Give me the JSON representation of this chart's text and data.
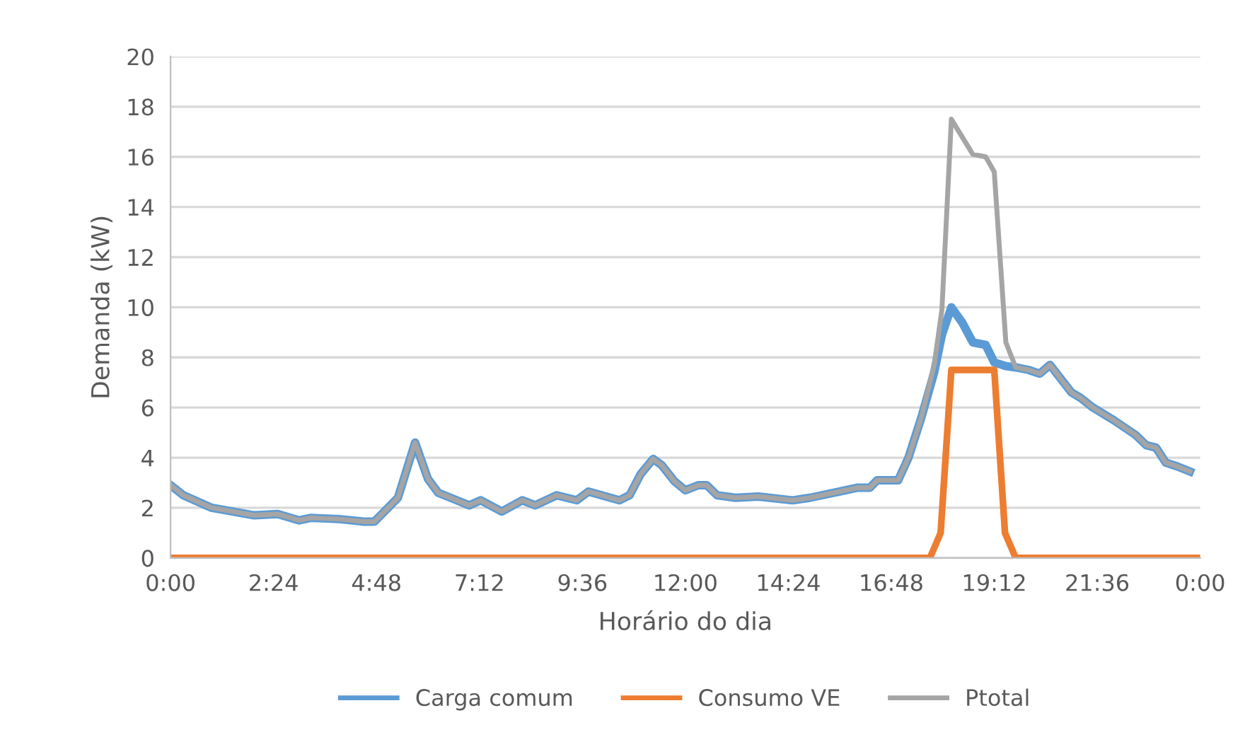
{
  "chart_data": {
    "type": "line",
    "xlabel": "Horário do dia",
    "ylabel": "Demanda (kW)",
    "xlim": [
      0,
      24
    ],
    "ylim": [
      0,
      20
    ],
    "xticks": [
      {
        "value": 0,
        "label": "0:00"
      },
      {
        "value": 2.4,
        "label": "2:24"
      },
      {
        "value": 4.8,
        "label": "4:48"
      },
      {
        "value": 7.2,
        "label": "7:12"
      },
      {
        "value": 9.6,
        "label": "9:36"
      },
      {
        "value": 12,
        "label": "12:00"
      },
      {
        "value": 14.4,
        "label": "14:24"
      },
      {
        "value": 16.8,
        "label": "16:48"
      },
      {
        "value": 19.2,
        "label": "19:12"
      },
      {
        "value": 21.6,
        "label": "21:36"
      },
      {
        "value": 24,
        "label": "0:00"
      }
    ],
    "yticks": [
      0,
      2,
      4,
      6,
      8,
      10,
      12,
      14,
      16,
      18,
      20
    ],
    "grid": "y",
    "legend": "bottom",
    "marker": "none",
    "line_style": "solid",
    "series": [
      {
        "name": "Carga comum",
        "color": "#5b9bd5",
        "x": [
          0,
          0.3,
          0.96,
          1.95,
          2.5,
          3.0,
          3.27,
          3.93,
          4.5,
          4.75,
          5.3,
          5.7,
          6.0,
          6.24,
          6.67,
          6.96,
          7.23,
          7.72,
          8.2,
          8.5,
          9.0,
          9.47,
          9.74,
          10.46,
          10.7,
          10.96,
          11.25,
          11.45,
          11.75,
          12.0,
          12.3,
          12.5,
          12.74,
          13.17,
          13.7,
          14.5,
          14.9,
          15.6,
          16.0,
          16.3,
          16.47,
          16.96,
          17.2,
          17.5,
          17.8,
          17.98,
          18.2,
          18.45,
          18.7,
          19.0,
          19.2,
          19.47,
          19.7,
          20.0,
          20.26,
          20.5,
          21.0,
          21.2,
          21.5,
          21.98,
          22.5,
          22.74,
          22.97,
          23.2,
          23.47,
          23.76
        ],
        "values": [
          2.9,
          2.5,
          2.0,
          1.7,
          1.75,
          1.5,
          1.6,
          1.55,
          1.45,
          1.45,
          2.4,
          4.6,
          3.15,
          2.6,
          2.3,
          2.1,
          2.3,
          1.85,
          2.3,
          2.1,
          2.5,
          2.3,
          2.65,
          2.3,
          2.5,
          3.35,
          3.95,
          3.7,
          3.05,
          2.7,
          2.9,
          2.9,
          2.5,
          2.4,
          2.45,
          2.3,
          2.4,
          2.65,
          2.8,
          2.8,
          3.1,
          3.1,
          4.0,
          5.6,
          7.4,
          8.9,
          10.0,
          9.4,
          8.6,
          8.5,
          7.8,
          7.65,
          7.6,
          7.5,
          7.35,
          7.7,
          6.6,
          6.4,
          6.0,
          5.5,
          4.9,
          4.5,
          4.4,
          3.8,
          3.65,
          3.45
        ]
      },
      {
        "name": "Consumo VE",
        "color": "#ed7d31",
        "x": [
          0,
          17.7,
          17.95,
          18.2,
          19.2,
          19.45,
          19.7,
          24
        ],
        "values": [
          0,
          0,
          1.0,
          7.5,
          7.5,
          1.0,
          0,
          0
        ]
      },
      {
        "name": "Ptotal",
        "color": "#a5a5a5",
        "x": [
          0,
          0.3,
          0.96,
          1.95,
          2.5,
          3.0,
          3.27,
          3.93,
          4.5,
          4.75,
          5.3,
          5.7,
          6.0,
          6.24,
          6.67,
          6.96,
          7.23,
          7.72,
          8.2,
          8.5,
          9.0,
          9.47,
          9.74,
          10.46,
          10.7,
          10.96,
          11.25,
          11.45,
          11.75,
          12.0,
          12.3,
          12.5,
          12.74,
          13.17,
          13.7,
          14.5,
          14.9,
          15.6,
          16.0,
          16.3,
          16.47,
          16.96,
          17.2,
          17.5,
          17.8,
          17.98,
          18.2,
          18.45,
          18.7,
          19.0,
          19.2,
          19.47,
          19.7,
          20.0,
          20.26,
          20.5,
          21.0,
          21.2,
          21.5,
          21.98,
          22.5,
          22.74,
          22.97,
          23.2,
          23.47,
          23.76
        ],
        "values": [
          2.9,
          2.5,
          2.0,
          1.7,
          1.75,
          1.5,
          1.6,
          1.55,
          1.45,
          1.45,
          2.4,
          4.6,
          3.15,
          2.6,
          2.3,
          2.1,
          2.3,
          1.85,
          2.3,
          2.1,
          2.5,
          2.3,
          2.65,
          2.3,
          2.5,
          3.35,
          3.95,
          3.7,
          3.05,
          2.7,
          2.9,
          2.9,
          2.5,
          2.4,
          2.45,
          2.3,
          2.4,
          2.65,
          2.8,
          2.8,
          3.1,
          3.1,
          4.0,
          5.6,
          7.7,
          9.9,
          17.5,
          16.8,
          16.1,
          16.0,
          15.4,
          8.6,
          7.6,
          7.5,
          7.35,
          7.7,
          6.6,
          6.4,
          6.0,
          5.5,
          4.9,
          4.5,
          4.4,
          3.8,
          3.65,
          3.45
        ]
      }
    ]
  }
}
